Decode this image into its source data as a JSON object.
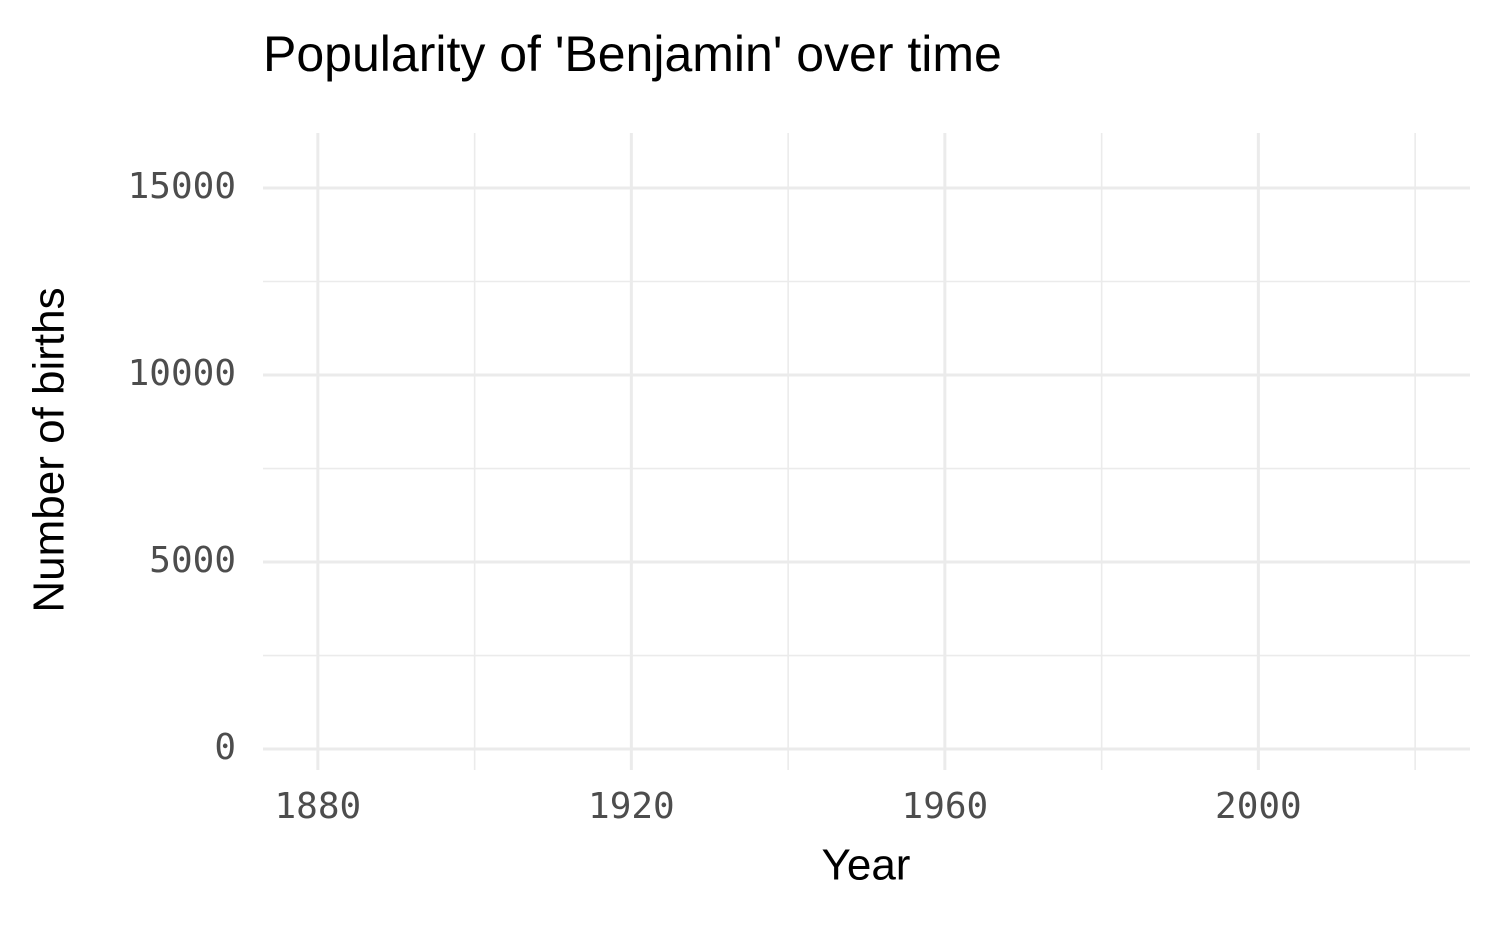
{
  "chart_data": {
    "type": "line",
    "title": "Popularity of 'Benjamin' over time",
    "x_label": "Year",
    "y_label": "Number of births",
    "x": [],
    "series": [],
    "xlim": [
      1873,
      2027
    ],
    "xticks": [
      1880,
      1920,
      1960,
      2000
    ],
    "minor_xticks": [
      1900,
      1940,
      1980,
      2020
    ],
    "ylim": [
      -560,
      16470
    ],
    "yticks": [
      0,
      5000,
      10000,
      15000
    ],
    "minor_yticks": [
      2500,
      7500,
      12500
    ],
    "grid": true
  }
}
